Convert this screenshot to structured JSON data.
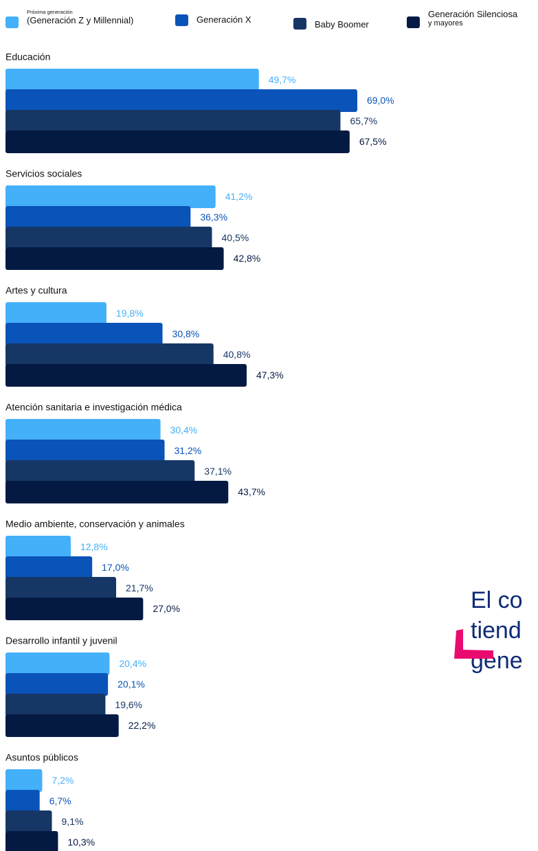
{
  "chart_data": {
    "type": "bar",
    "orientation": "horizontal",
    "unit": "%",
    "series": [
      {
        "name": "Próxima generación (Generación Z y Millennial)",
        "name_small": "Próxima generación",
        "name_main": "(Generación Z y Millennial)",
        "color": "#44b0fa",
        "label_color": "#44b0fa"
      },
      {
        "name": "Generación X",
        "color": "#0a53b8",
        "label_color": "#0a53b8"
      },
      {
        "name": "Baby Boomer",
        "color": "#163765",
        "label_color": "#163765"
      },
      {
        "name": "Generación Silenciosa y mayores",
        "name_line1": "Generación Silenciosa",
        "name_line2": "y mayores",
        "color": "#051a42",
        "label_color": "#051a42"
      }
    ],
    "categories": [
      {
        "name": "Educación",
        "values": [
          49.7,
          69.0,
          65.7,
          67.5
        ],
        "labels": [
          "49,7%",
          "69,0%",
          "65,7%",
          "67,5%"
        ]
      },
      {
        "name": "Servicios sociales",
        "values": [
          41.2,
          36.3,
          40.5,
          42.8
        ],
        "labels": [
          "41,2%",
          "36,3%",
          "40,5%",
          "42,8%"
        ]
      },
      {
        "name": "Artes y cultura",
        "values": [
          19.8,
          30.8,
          40.8,
          47.3
        ],
        "labels": [
          "19,8%",
          "30,8%",
          "40,8%",
          "47,3%"
        ]
      },
      {
        "name": "Atención sanitaria e investigación médica",
        "values": [
          30.4,
          31.2,
          37.1,
          43.7
        ],
        "labels": [
          "30,4%",
          "31,2%",
          "37,1%",
          "43,7%"
        ]
      },
      {
        "name": "Medio ambiente, conservación y animales",
        "values": [
          12.8,
          17.0,
          21.7,
          27.0
        ],
        "labels": [
          "12,8%",
          "17,0%",
          "21,7%",
          "27,0%"
        ]
      },
      {
        "name": "Desarrollo infantil y juvenil",
        "values": [
          20.4,
          20.1,
          19.6,
          22.2
        ],
        "labels": [
          "20,4%",
          "20,1%",
          "19,6%",
          "22,2%"
        ]
      },
      {
        "name": "Asuntos públicos",
        "values": [
          7.2,
          6.7,
          9.1,
          10.3
        ],
        "labels": [
          "7,2%",
          "6,7%",
          "9,1%",
          "10,3%"
        ]
      }
    ]
  },
  "overlay": {
    "lines": [
      "El co",
      "tiend",
      "gene"
    ],
    "text_color": "#0e2a75",
    "accent_color": "#ea0b6f"
  }
}
